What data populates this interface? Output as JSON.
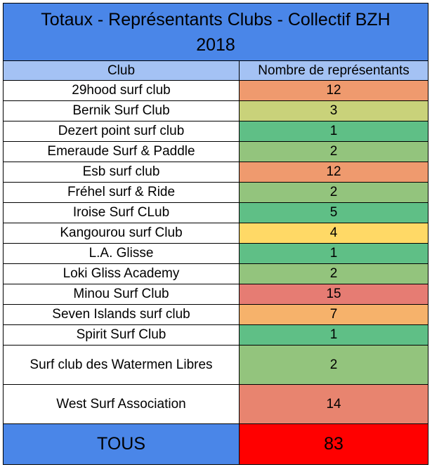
{
  "title_line1": "Totaux - Représentants Clubs - Collectif BZH",
  "title_line2": "2018",
  "headers": {
    "club": "Club",
    "count": "Nombre de représentants"
  },
  "rows": [
    {
      "club": "29hood surf club",
      "count": "12",
      "color": "#ef9a6e"
    },
    {
      "club": "Bernik Surf Club",
      "count": "3",
      "color": "#c9d27a"
    },
    {
      "club": "Dezert point surf club",
      "count": "1",
      "color": "#5fbf86"
    },
    {
      "club": "Emeraude Surf & Paddle",
      "count": "2",
      "color": "#93c47d"
    },
    {
      "club": "Esb surf club",
      "count": "12",
      "color": "#ef9a6e"
    },
    {
      "club": "Fréhel surf & Ride",
      "count": "2",
      "color": "#93c47d"
    },
    {
      "club": "Iroise Surf CLub",
      "count": "5",
      "color": "#5fbf86"
    },
    {
      "club": "Kangourou surf Club",
      "count": "4",
      "color": "#ffd966"
    },
    {
      "club": "L.A. Glisse",
      "count": "1",
      "color": "#5fbf86"
    },
    {
      "club": "Loki Gliss Academy",
      "count": "2",
      "color": "#93c47d"
    },
    {
      "club": "Minou Surf Club",
      "count": "15",
      "color": "#e67c73"
    },
    {
      "club": "Seven Islands surf club",
      "count": "7",
      "color": "#f6b26b"
    },
    {
      "club": "Spirit Surf Club",
      "count": "1",
      "color": "#5fbf86"
    },
    {
      "club": "Surf club des Watermen Libres",
      "count": "2",
      "color": "#93c47d"
    },
    {
      "club": "West Surf Association",
      "count": "14",
      "color": "#e8846f"
    }
  ],
  "total": {
    "label": "TOUS",
    "value": "83"
  },
  "colors": {
    "title_bg": "#4a86e8",
    "header_bg": "#a4c2f4",
    "total_value_bg": "#ff0000"
  }
}
